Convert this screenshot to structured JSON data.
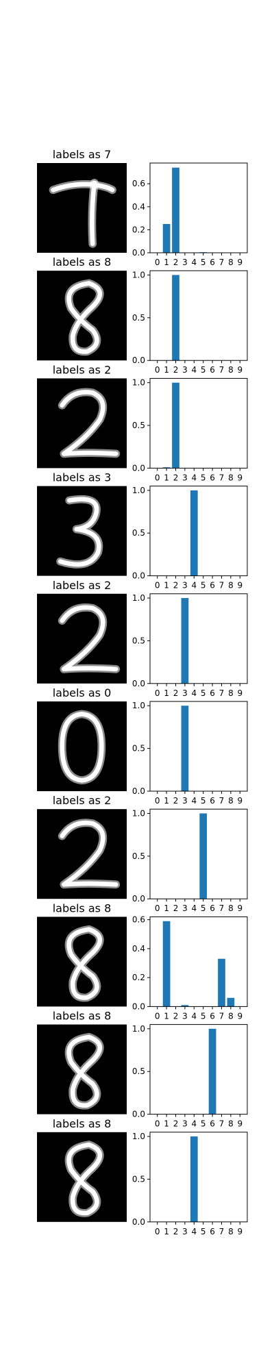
{
  "colors": {
    "bar": "#1f77b4",
    "image_bg": "#000000",
    "axis": "#000000",
    "digit": "#ffffff"
  },
  "chart_data": [
    {
      "type": "bar",
      "title": "labels as 7",
      "categories": [
        "0",
        "1",
        "2",
        "3",
        "4",
        "5",
        "6",
        "7",
        "8",
        "9"
      ],
      "values": [
        0,
        0.25,
        0.74,
        0,
        0,
        0.005,
        0,
        0,
        0,
        0
      ],
      "ylim": [
        0,
        0.78
      ],
      "yticks": [
        0.0,
        0.2,
        0.4,
        0.6
      ],
      "ytick_labels": [
        "0.0",
        "0.2",
        "0.4",
        "0.6"
      ],
      "digit": "7"
    },
    {
      "type": "bar",
      "title": "labels as 8",
      "categories": [
        "0",
        "1",
        "2",
        "3",
        "4",
        "5",
        "6",
        "7",
        "8",
        "9"
      ],
      "values": [
        0,
        0,
        1.0,
        0,
        0,
        0,
        0,
        0,
        0,
        0
      ],
      "ylim": [
        0,
        1.05
      ],
      "yticks": [
        0.0,
        0.5,
        1.0
      ],
      "ytick_labels": [
        "0.0",
        "0.5",
        "1.0"
      ],
      "digit": "8"
    },
    {
      "type": "bar",
      "title": "labels as 2",
      "categories": [
        "0",
        "1",
        "2",
        "3",
        "4",
        "5",
        "6",
        "7",
        "8",
        "9"
      ],
      "values": [
        0,
        0.01,
        1.0,
        0,
        0,
        0,
        0,
        0,
        0,
        0
      ],
      "ylim": [
        0,
        1.05
      ],
      "yticks": [
        0.0,
        0.5,
        1.0
      ],
      "ytick_labels": [
        "0.0",
        "0.5",
        "1.0"
      ],
      "digit": "2"
    },
    {
      "type": "bar",
      "title": "labels as 3",
      "categories": [
        "0",
        "1",
        "2",
        "3",
        "4",
        "5",
        "6",
        "7",
        "8",
        "9"
      ],
      "values": [
        0,
        0,
        0,
        0,
        1.0,
        0,
        0,
        0,
        0,
        0
      ],
      "ylim": [
        0,
        1.05
      ],
      "yticks": [
        0.0,
        0.5,
        1.0
      ],
      "ytick_labels": [
        "0.0",
        "0.5",
        "1.0"
      ],
      "digit": "3"
    },
    {
      "type": "bar",
      "title": "labels as 2",
      "categories": [
        "0",
        "1",
        "2",
        "3",
        "4",
        "5",
        "6",
        "7",
        "8",
        "9"
      ],
      "values": [
        0,
        0,
        0,
        1.0,
        0,
        0,
        0,
        0,
        0,
        0
      ],
      "ylim": [
        0,
        1.05
      ],
      "yticks": [
        0.0,
        0.5,
        1.0
      ],
      "ytick_labels": [
        "0.0",
        "0.5",
        "1.0"
      ],
      "digit": "2"
    },
    {
      "type": "bar",
      "title": "labels as 0",
      "categories": [
        "0",
        "1",
        "2",
        "3",
        "4",
        "5",
        "6",
        "7",
        "8",
        "9"
      ],
      "values": [
        0,
        0,
        0,
        1.0,
        0,
        0,
        0,
        0,
        0,
        0
      ],
      "ylim": [
        0,
        1.05
      ],
      "yticks": [
        0.0,
        0.5,
        1.0
      ],
      "ytick_labels": [
        "0.0",
        "0.5",
        "1.0"
      ],
      "digit": "0"
    },
    {
      "type": "bar",
      "title": "labels as 2",
      "categories": [
        "0",
        "1",
        "2",
        "3",
        "4",
        "5",
        "6",
        "7",
        "8",
        "9"
      ],
      "values": [
        0,
        0,
        0,
        0,
        0,
        1.0,
        0,
        0,
        0,
        0
      ],
      "ylim": [
        0,
        1.05
      ],
      "yticks": [
        0.0,
        0.5,
        1.0
      ],
      "ytick_labels": [
        "0.0",
        "0.5",
        "1.0"
      ],
      "digit": "2"
    },
    {
      "type": "bar",
      "title": "labels as 8",
      "categories": [
        "0",
        "1",
        "2",
        "3",
        "4",
        "5",
        "6",
        "7",
        "8",
        "9"
      ],
      "values": [
        0,
        0.59,
        0,
        0.01,
        0,
        0,
        0,
        0.33,
        0.06,
        0
      ],
      "ylim": [
        0,
        0.62
      ],
      "yticks": [
        0.0,
        0.2,
        0.4,
        0.6
      ],
      "ytick_labels": [
        "0.0",
        "0.2",
        "0.4",
        "0.6"
      ],
      "digit": "8"
    },
    {
      "type": "bar",
      "title": "labels as 8",
      "categories": [
        "0",
        "1",
        "2",
        "3",
        "4",
        "5",
        "6",
        "7",
        "8",
        "9"
      ],
      "values": [
        0,
        0,
        0,
        0,
        0,
        0,
        1.0,
        0,
        0,
        0
      ],
      "ylim": [
        0,
        1.05
      ],
      "yticks": [
        0.0,
        0.5,
        1.0
      ],
      "ytick_labels": [
        "0.0",
        "0.5",
        "1.0"
      ],
      "digit": "8"
    },
    {
      "type": "bar",
      "title": "labels as 8",
      "categories": [
        "0",
        "1",
        "2",
        "3",
        "4",
        "5",
        "6",
        "7",
        "8",
        "9"
      ],
      "values": [
        0,
        0,
        0,
        0,
        1.0,
        0,
        0,
        0,
        0,
        0
      ],
      "ylim": [
        0,
        1.05
      ],
      "yticks": [
        0.0,
        0.5,
        1.0
      ],
      "ytick_labels": [
        "0.0",
        "0.5",
        "1.0"
      ],
      "digit": "8"
    }
  ]
}
